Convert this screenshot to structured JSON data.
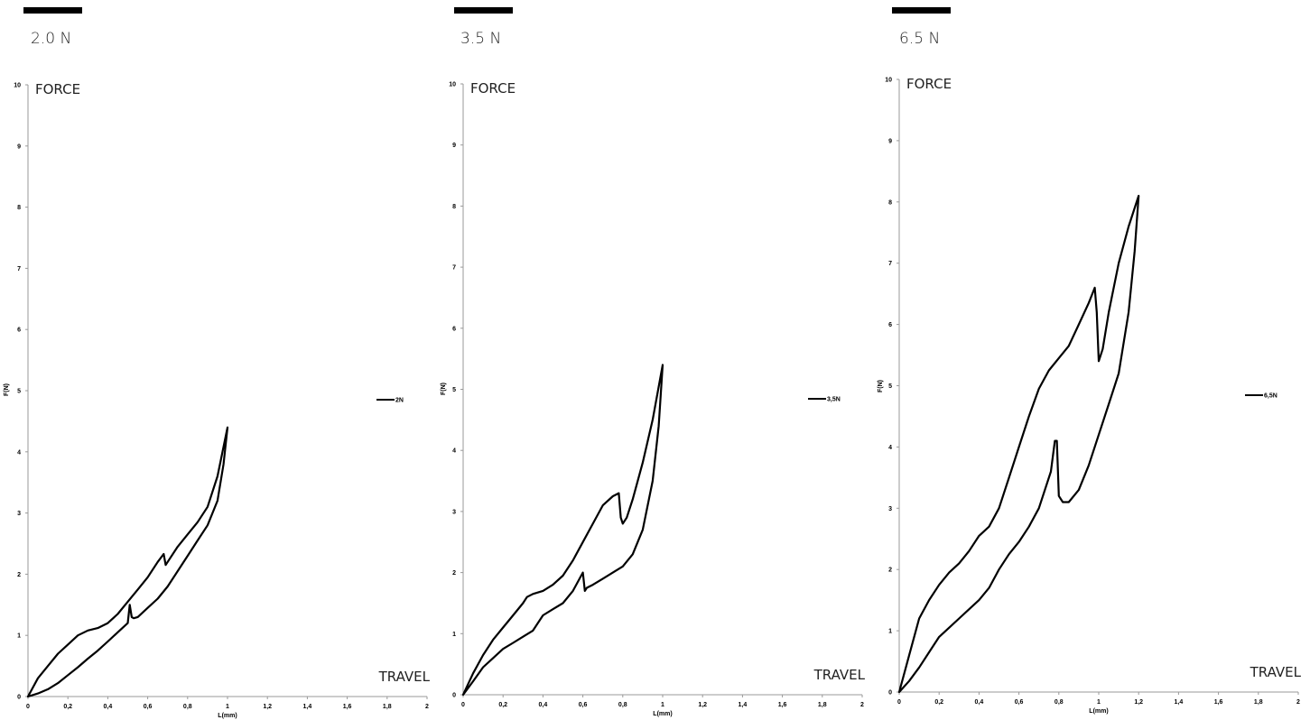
{
  "chart_data": [
    {
      "type": "line",
      "rating": "2.0 N",
      "y_corner_label": "FORCE",
      "x_corner_label": "TRAVEL",
      "xlabel": "L(mm)",
      "ylabel": "F(N)",
      "xlim": [
        0,
        2
      ],
      "ylim": [
        0,
        10
      ],
      "x_ticks": [
        "0",
        "0,2",
        "0,4",
        "0,6",
        "0,8",
        "1",
        "1,2",
        "1,4",
        "1,6",
        "1,8",
        "2"
      ],
      "y_ticks": [
        "0",
        "1",
        "2",
        "3",
        "4",
        "5",
        "6",
        "7",
        "8",
        "9",
        "10"
      ],
      "legend_position": "right",
      "grid": false,
      "series": [
        {
          "name": "2N",
          "x": [
            0,
            0.05,
            0.1,
            0.15,
            0.2,
            0.25,
            0.3,
            0.35,
            0.4,
            0.45,
            0.5,
            0.55,
            0.6,
            0.65,
            0.68,
            0.69,
            0.7,
            0.75,
            0.8,
            0.85,
            0.9,
            0.95,
            1.0,
            0.98,
            0.95,
            0.9,
            0.85,
            0.8,
            0.75,
            0.7,
            0.65,
            0.6,
            0.55,
            0.53,
            0.52,
            0.51,
            0.5,
            0.45,
            0.4,
            0.35,
            0.3,
            0.25,
            0.2,
            0.15,
            0.1,
            0.05,
            0
          ],
          "y": [
            0,
            0.3,
            0.5,
            0.7,
            0.85,
            1.0,
            1.08,
            1.12,
            1.2,
            1.35,
            1.55,
            1.75,
            1.95,
            2.2,
            2.33,
            2.15,
            2.2,
            2.45,
            2.65,
            2.85,
            3.1,
            3.6,
            4.4,
            3.8,
            3.2,
            2.8,
            2.55,
            2.3,
            2.05,
            1.8,
            1.6,
            1.45,
            1.3,
            1.28,
            1.3,
            1.5,
            1.2,
            1.05,
            0.9,
            0.75,
            0.62,
            0.48,
            0.35,
            0.22,
            0.12,
            0.05,
            0
          ]
        }
      ]
    },
    {
      "type": "line",
      "rating": "3.5 N",
      "y_corner_label": "FORCE",
      "x_corner_label": "TRAVEL",
      "xlabel": "L(mm)",
      "ylabel": "F(N)",
      "xlim": [
        0,
        2
      ],
      "ylim": [
        0,
        10
      ],
      "x_ticks": [
        "0",
        "0,2",
        "0,4",
        "0,6",
        "0,8",
        "1",
        "1,2",
        "1,4",
        "1,6",
        "1,8",
        "2"
      ],
      "y_ticks": [
        "0",
        "1",
        "2",
        "3",
        "4",
        "5",
        "6",
        "7",
        "8",
        "9",
        "10"
      ],
      "legend_position": "right",
      "grid": false,
      "series": [
        {
          "name": "3,5N",
          "x": [
            0,
            0.05,
            0.1,
            0.15,
            0.2,
            0.25,
            0.3,
            0.32,
            0.35,
            0.4,
            0.45,
            0.5,
            0.55,
            0.6,
            0.65,
            0.7,
            0.75,
            0.78,
            0.79,
            0.8,
            0.82,
            0.85,
            0.9,
            0.95,
            1.0,
            0.98,
            0.95,
            0.9,
            0.85,
            0.8,
            0.75,
            0.7,
            0.65,
            0.62,
            0.61,
            0.6,
            0.55,
            0.5,
            0.45,
            0.4,
            0.35,
            0.3,
            0.25,
            0.2,
            0.15,
            0.1,
            0.05,
            0
          ],
          "y": [
            0,
            0.35,
            0.65,
            0.9,
            1.1,
            1.3,
            1.5,
            1.6,
            1.65,
            1.7,
            1.8,
            1.95,
            2.2,
            2.5,
            2.8,
            3.1,
            3.25,
            3.3,
            2.9,
            2.8,
            2.9,
            3.2,
            3.8,
            4.5,
            5.4,
            4.4,
            3.5,
            2.7,
            2.3,
            2.1,
            2.0,
            1.9,
            1.8,
            1.75,
            1.7,
            2.0,
            1.7,
            1.5,
            1.4,
            1.3,
            1.05,
            0.95,
            0.85,
            0.75,
            0.6,
            0.45,
            0.22,
            0
          ]
        }
      ]
    },
    {
      "type": "line",
      "rating": "6.5 N",
      "y_corner_label": "FORCE",
      "x_corner_label": "TRAVEL",
      "xlabel": "L(mm)",
      "ylabel": "F(N)",
      "xlim": [
        0,
        2
      ],
      "ylim": [
        0,
        10
      ],
      "x_ticks": [
        "0",
        "0,2",
        "0,4",
        "0,6",
        "0,8",
        "1",
        "1,2",
        "1,4",
        "1,6",
        "1,8",
        "2"
      ],
      "y_ticks": [
        "0",
        "1",
        "2",
        "3",
        "4",
        "5",
        "6",
        "7",
        "8",
        "9",
        "10"
      ],
      "legend_position": "right",
      "grid": false,
      "series": [
        {
          "name": "6,5N",
          "x": [
            0,
            0.05,
            0.1,
            0.15,
            0.2,
            0.25,
            0.3,
            0.35,
            0.4,
            0.45,
            0.5,
            0.55,
            0.6,
            0.65,
            0.7,
            0.75,
            0.8,
            0.85,
            0.9,
            0.95,
            0.98,
            0.99,
            1.0,
            1.02,
            1.05,
            1.1,
            1.15,
            1.2,
            1.18,
            1.15,
            1.1,
            1.05,
            1.0,
            0.95,
            0.9,
            0.85,
            0.82,
            0.8,
            0.79,
            0.78,
            0.76,
            0.7,
            0.65,
            0.6,
            0.55,
            0.5,
            0.45,
            0.4,
            0.35,
            0.3,
            0.25,
            0.2,
            0.15,
            0.1,
            0.05,
            0
          ],
          "y": [
            0,
            0.6,
            1.2,
            1.5,
            1.75,
            1.95,
            2.1,
            2.3,
            2.55,
            2.7,
            3.0,
            3.5,
            4.0,
            4.5,
            4.95,
            5.25,
            5.45,
            5.65,
            6.0,
            6.35,
            6.6,
            6.2,
            5.4,
            5.6,
            6.2,
            7.0,
            7.6,
            8.1,
            7.2,
            6.2,
            5.2,
            4.7,
            4.2,
            3.7,
            3.3,
            3.1,
            3.1,
            3.2,
            4.1,
            4.1,
            3.6,
            3.0,
            2.7,
            2.45,
            2.25,
            2.0,
            1.7,
            1.5,
            1.35,
            1.2,
            1.05,
            0.9,
            0.65,
            0.4,
            0.18,
            0
          ]
        }
      ]
    }
  ]
}
